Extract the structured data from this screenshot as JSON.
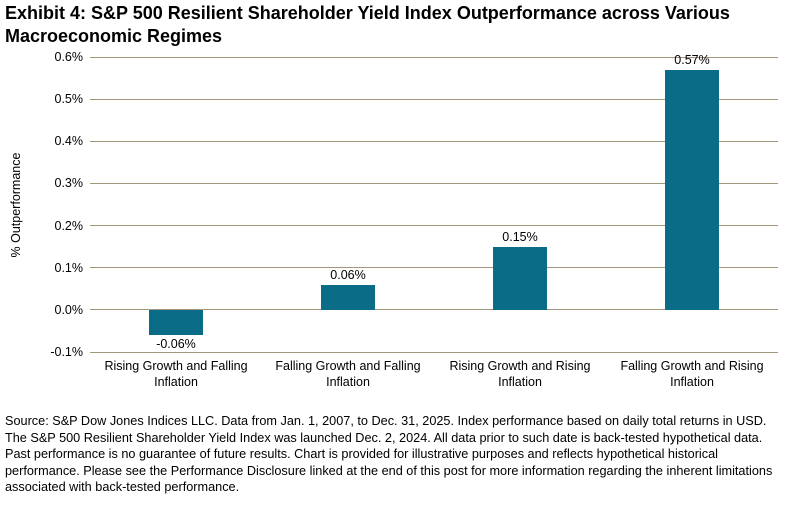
{
  "title": "Exhibit 4: S&P 500 Resilient Shareholder Yield Index Outperformance across Various Macroeconomic Regimes",
  "chart_data": {
    "type": "bar",
    "categories": [
      "Rising Growth and Falling Inflation",
      "Falling Growth and Falling Inflation",
      "Rising Growth and Rising Inflation",
      "Falling Growth and Rising Inflation"
    ],
    "values": [
      -0.06,
      0.06,
      0.15,
      0.57
    ],
    "data_labels": [
      "-0.06%",
      "0.06%",
      "0.15%",
      "0.57%"
    ],
    "title": "Exhibit 4: S&P 500 Resilient Shareholder Yield Index Outperformance across Various Macroeconomic Regimes",
    "xlabel": "",
    "ylabel": "% Outperformance",
    "ylim": [
      -0.1,
      0.6
    ],
    "ytick_step": 0.1,
    "ytick_labels": [
      "0.6%",
      "0.5%",
      "0.4%",
      "0.3%",
      "0.2%",
      "0.1%",
      "0.0%",
      "-0.1%"
    ],
    "grid": true,
    "legend": "none",
    "bar_color": "#0a6c87",
    "grid_color": "#a2977d"
  },
  "footer": "Source: S&P Dow Jones Indices LLC. Data from Jan. 1, 2007, to Dec. 31, 2025. Index performance based on daily total returns in USD. The S&P 500 Resilient Shareholder Yield Index was launched Dec. 2, 2024. All data prior to such date is back-tested hypothetical data. Past performance is no guarantee of future results. Chart is provided for illustrative purposes and reflects hypothetical historical performance. Please see the Performance Disclosure linked at the end of this post for more information regarding the inherent limitations associated with back-tested performance."
}
